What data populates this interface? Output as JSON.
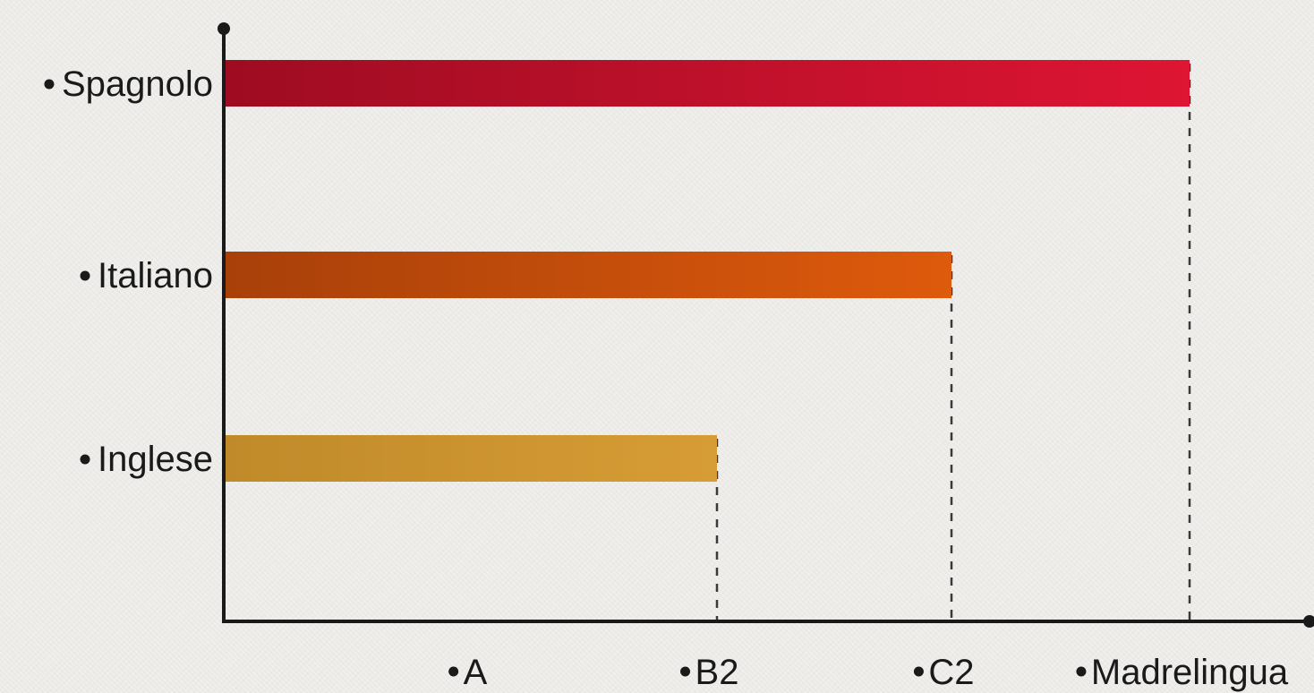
{
  "chart_data": {
    "type": "bar",
    "orientation": "horizontal",
    "categories": [
      "Spagnolo",
      "Italiano",
      "Inglese"
    ],
    "values": [
      4,
      3,
      2
    ],
    "x_levels": [
      "A",
      "B2",
      "C2",
      "Madrelingua"
    ],
    "colors": {
      "Spagnolo": [
        "#9e0c22",
        "#de1533"
      ],
      "Italiano": [
        "#a8400a",
        "#de5a0c"
      ],
      "Inglese": [
        "#c08a2a",
        "#d79c35"
      ]
    },
    "axis_color": "#1a1a1a",
    "grid": false,
    "guide_lines": "dashed"
  }
}
